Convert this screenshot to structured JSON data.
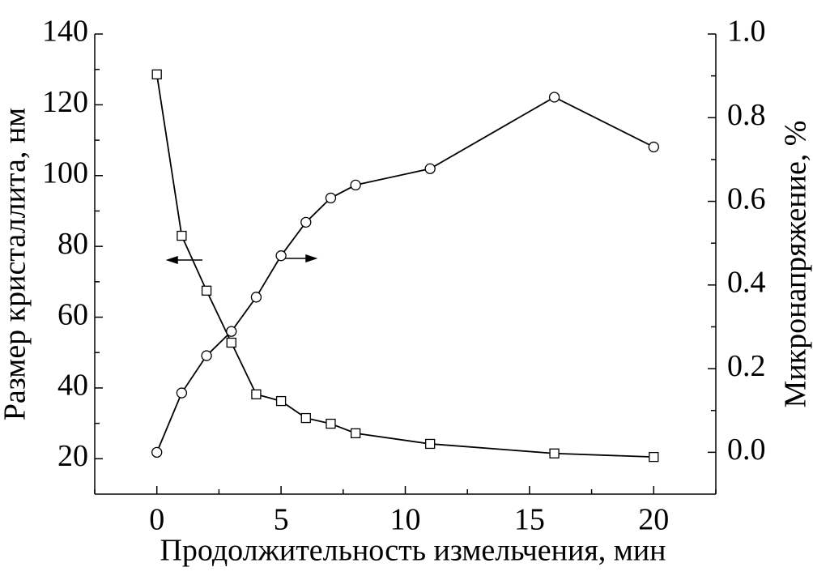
{
  "chart_data": {
    "type": "line",
    "x_label": "Продолжительность измельчения, мин",
    "y_label": "Размер кристаллита, нм",
    "y2_label": "Микронапряжение, %",
    "xlim": [
      -2.5,
      22.5
    ],
    "xticks": [
      0,
      5,
      10,
      15,
      20
    ],
    "ylim": [
      10,
      140
    ],
    "yticks": [
      20,
      40,
      60,
      80,
      100,
      120,
      140
    ],
    "y2lim": [
      -0.1,
      1.0
    ],
    "y2ticks": [
      {
        "value": 0,
        "label": "0.0"
      },
      0.2,
      0.4,
      0.6,
      0.8,
      {
        "value": 1,
        "label": "1.0"
      }
    ],
    "series": [
      {
        "name": "Размер кристаллита",
        "color": "#000000",
        "marker": "square",
        "x": [
          0,
          1,
          2,
          3,
          4,
          5,
          6,
          7,
          8,
          11,
          16,
          20
        ],
        "values": [
          128.6,
          83,
          67.5,
          52.8,
          38.2,
          36.3,
          31.5,
          29.9,
          27.2,
          24.2,
          21.5,
          20.5
        ]
      },
      {
        "name": "Микронапряжение",
        "color": "#000000",
        "marker": "circle",
        "axis": "y2",
        "x": [
          0,
          1,
          2,
          3,
          4,
          5,
          6,
          7,
          8,
          11,
          16,
          20
        ],
        "values": [
          0.0,
          0.142,
          0.231,
          0.289,
          0.371,
          0.47,
          0.55,
          0.608,
          0.639,
          0.678,
          0.849,
          0.73
        ]
      }
    ]
  }
}
